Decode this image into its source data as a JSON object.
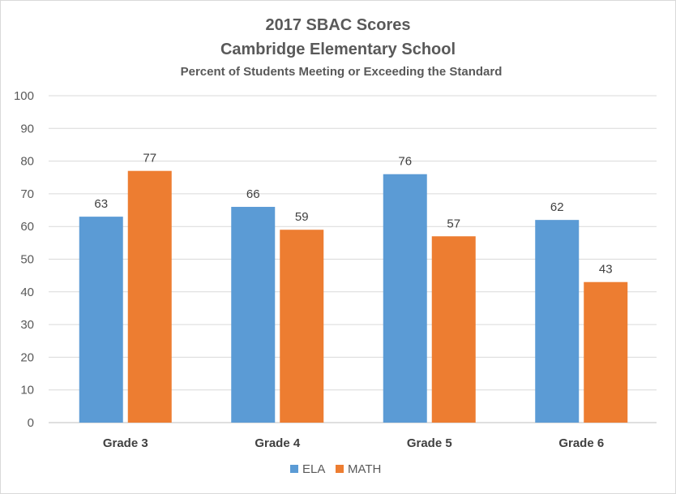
{
  "chart_data": {
    "type": "bar",
    "title": "2017 SBAC Scores",
    "subtitle": "Cambridge Elementary School",
    "subtitle2": "Percent of Students Meeting or Exceeding the Standard",
    "categories": [
      "Grade 3",
      "Grade 4",
      "Grade 5",
      "Grade 6"
    ],
    "series": [
      {
        "name": "ELA",
        "color": "#5b9bd5",
        "values": [
          63,
          66,
          76,
          62
        ]
      },
      {
        "name": "MATH",
        "color": "#ed7d31",
        "values": [
          77,
          59,
          57,
          43
        ]
      }
    ],
    "ylim": [
      0,
      100
    ],
    "yticks": [
      0,
      10,
      20,
      30,
      40,
      50,
      60,
      70,
      80,
      90,
      100
    ],
    "grid": true,
    "legend": "bottom",
    "data_labels": true
  }
}
